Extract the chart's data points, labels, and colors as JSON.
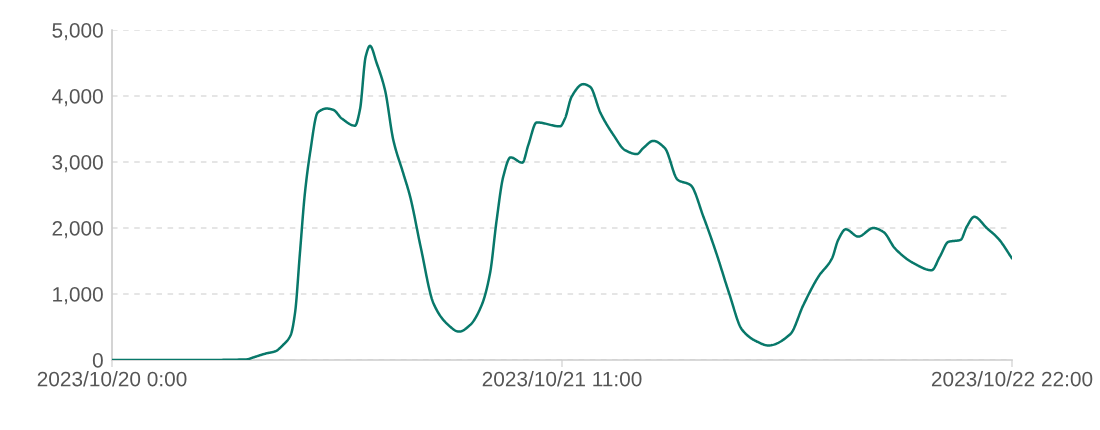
{
  "chart_data": {
    "type": "line",
    "x": [
      "2023-10-20T00:00",
      "2023-10-20T06:51",
      "2023-10-20T10:29",
      "2023-10-20T11:00",
      "2023-10-20T12:00",
      "2023-10-20T12:41",
      "2023-10-20T13:19",
      "2023-10-20T13:54",
      "2023-10-20T14:14",
      "2023-10-20T14:37",
      "2023-10-20T15:00",
      "2023-10-20T15:24",
      "2023-10-20T16:00",
      "2023-10-20T16:42",
      "2023-10-20T17:13",
      "2023-10-20T17:52",
      "2023-10-20T18:54",
      "2023-10-20T19:17",
      "2023-10-20T19:44",
      "2023-10-20T20:04",
      "2023-10-20T20:35",
      "2023-10-20T21:14",
      "2023-10-20T21:53",
      "2023-10-20T22:39",
      "2023-10-20T23:11",
      "2023-10-21T00:00",
      "2023-10-21T01:00",
      "2023-10-21T02:00",
      "2023-10-21T03:00",
      "2023-10-21T03:51",
      "2023-10-21T04:45",
      "2023-10-21T05:24",
      "2023-10-21T05:55",
      "2023-10-21T06:26",
      "2023-10-21T07:00",
      "2023-10-21T07:55",
      "2023-10-21T08:23",
      "2023-10-21T09:02",
      "2023-10-21T10:51",
      "2023-10-21T11:14",
      "2023-10-21T11:45",
      "2023-10-21T12:39",
      "2023-10-21T13:11",
      "2023-10-21T14:00",
      "2023-10-21T15:00",
      "2023-10-21T15:54",
      "2023-10-21T16:49",
      "2023-10-21T17:19",
      "2023-10-21T18:06",
      "2023-10-21T19:00",
      "2023-10-21T20:00",
      "2023-10-21T21:00",
      "2023-10-21T22:00",
      "2023-10-21T23:00",
      "2023-10-22T00:00",
      "2023-10-22T01:00",
      "2023-10-22T02:09",
      "2023-10-22T03:03",
      "2023-10-22T04:45",
      "2023-10-22T05:46",
      "2023-10-22T06:56",
      "2023-10-22T08:00",
      "2023-10-22T08:29",
      "2023-10-22T09:04",
      "2023-10-22T10:03",
      "2023-10-22T11:13",
      "2023-10-22T12:00",
      "2023-10-22T12:54",
      "2023-10-22T14:19",
      "2023-10-22T15:45",
      "2023-10-22T16:24",
      "2023-10-22T17:03",
      "2023-10-22T18:00",
      "2023-10-22T18:29",
      "2023-10-22T19:04",
      "2023-10-22T20:02",
      "2023-10-22T20:56",
      "2023-10-22T22:00"
    ],
    "series": [
      {
        "color": "#08786a",
        "values": [
          0,
          0,
          10,
          40,
          100,
          130,
          230,
          380,
          710,
          1620,
          2520,
          3130,
          3750,
          3810,
          3790,
          3660,
          3550,
          3790,
          4600,
          4760,
          4500,
          4090,
          3330,
          2830,
          2480,
          1720,
          860,
          560,
          430,
          530,
          830,
          1310,
          2120,
          2780,
          3070,
          2990,
          3260,
          3600,
          3540,
          3660,
          3990,
          4180,
          4140,
          3740,
          3410,
          3180,
          3120,
          3210,
          3320,
          3210,
          2730,
          2650,
          2170,
          1620,
          1010,
          460,
          280,
          220,
          390,
          830,
          1260,
          1540,
          1820,
          1980,
          1870,
          2000,
          1940,
          1690,
          1470,
          1360,
          1570,
          1790,
          1820,
          2020,
          2170,
          2000,
          1840,
          1540
        ]
      }
    ],
    "xlim": [
      "2023-10-20T00:00",
      "2023-10-22T22:00"
    ],
    "xticks": [
      {
        "value": "2023-10-20T00:00",
        "label": "2023/10/20 0:00"
      },
      {
        "value": "2023-10-21T11:00",
        "label": "2023/10/21 11:00"
      },
      {
        "value": "2023-10-22T22:00",
        "label": "2023/10/22 22:00"
      }
    ],
    "ylim": [
      0,
      5000
    ],
    "yticks": [
      0,
      {
        "value": 1000,
        "label": "1,000"
      },
      {
        "value": 2000,
        "label": "2,000"
      },
      {
        "value": 3000,
        "label": "3,000"
      },
      {
        "value": 4000,
        "label": "4,000"
      },
      {
        "value": 5000,
        "label": "5,000"
      }
    ],
    "grid": "y",
    "line_style": "solid"
  }
}
